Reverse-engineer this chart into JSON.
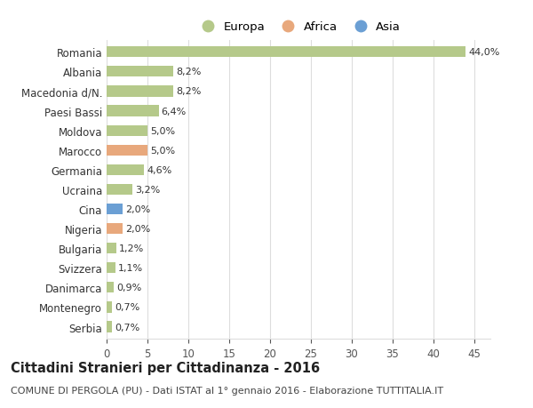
{
  "countries": [
    "Romania",
    "Albania",
    "Macedonia d/N.",
    "Paesi Bassi",
    "Moldova",
    "Marocco",
    "Germania",
    "Ucraina",
    "Cina",
    "Nigeria",
    "Bulgaria",
    "Svizzera",
    "Danimarca",
    "Montenegro",
    "Serbia"
  ],
  "values": [
    44.0,
    8.2,
    8.2,
    6.4,
    5.0,
    5.0,
    4.6,
    3.2,
    2.0,
    2.0,
    1.2,
    1.1,
    0.9,
    0.7,
    0.7
  ],
  "labels": [
    "44,0%",
    "8,2%",
    "8,2%",
    "6,4%",
    "5,0%",
    "5,0%",
    "4,6%",
    "3,2%",
    "2,0%",
    "2,0%",
    "1,2%",
    "1,1%",
    "0,9%",
    "0,7%",
    "0,7%"
  ],
  "continents": [
    "Europa",
    "Europa",
    "Europa",
    "Europa",
    "Europa",
    "Africa",
    "Europa",
    "Europa",
    "Asia",
    "Africa",
    "Europa",
    "Europa",
    "Europa",
    "Europa",
    "Europa"
  ],
  "colors": {
    "Europa": "#b5c98a",
    "Africa": "#e8a87c",
    "Asia": "#6b9fd4"
  },
  "title": "Cittadini Stranieri per Cittadinanza - 2016",
  "subtitle": "COMUNE DI PERGOLA (PU) - Dati ISTAT al 1° gennaio 2016 - Elaborazione TUTTITALIA.IT",
  "xlim": [
    0,
    47
  ],
  "xticks": [
    0,
    5,
    10,
    15,
    20,
    25,
    30,
    35,
    40,
    45
  ],
  "background_color": "#ffffff",
  "grid_color": "#dddddd",
  "bar_height": 0.55,
  "title_fontsize": 10.5,
  "subtitle_fontsize": 8,
  "tick_fontsize": 8.5,
  "label_fontsize": 8,
  "legend_fontsize": 9.5
}
